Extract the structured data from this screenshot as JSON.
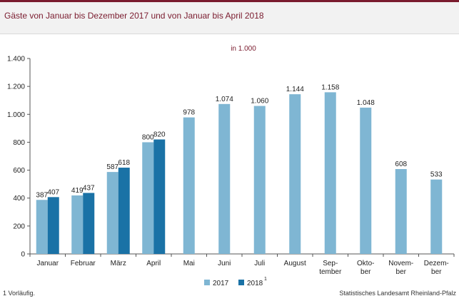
{
  "header": {
    "title": "Gäste von Januar bis Dezember 2017 und von Januar bis April 2018"
  },
  "footer": {
    "footnote": "1 Vorläufig.",
    "source": "Statistisches Landesamt Rheinland-Pfalz"
  },
  "colors": {
    "s2017": "#7fb6d3",
    "s2018": "#1a72a6",
    "brand": "#7a1b2e"
  },
  "chart_data": {
    "type": "bar",
    "unit_label": "in 1.000",
    "categories": [
      "Januar",
      "Februar",
      "März",
      "April",
      "Mai",
      "Juni",
      "Juli",
      "August",
      "Sep-|tember",
      "Okto-|ber",
      "Novem-|ber",
      "Dezem-|ber"
    ],
    "series": [
      {
        "name": "2017",
        "values": [
          387,
          419,
          587,
          800,
          978,
          1074,
          1060,
          1144,
          1158,
          1048,
          608,
          533
        ],
        "labels": [
          "387",
          "419",
          "587",
          "800",
          "978",
          "1.074",
          "1.060",
          "1.144",
          "1.158",
          "1.048",
          "608",
          "533"
        ]
      },
      {
        "name": "2018",
        "superscript": "1",
        "values": [
          407,
          437,
          618,
          820,
          null,
          null,
          null,
          null,
          null,
          null,
          null,
          null
        ],
        "labels": [
          "407",
          "437",
          "618",
          "820",
          "",
          "",
          "",
          "",
          "",
          "",
          "",
          ""
        ]
      }
    ],
    "ylim": [
      0,
      1400
    ],
    "yticks": [
      0,
      200,
      400,
      600,
      800,
      1000,
      1200,
      1400
    ],
    "ytick_labels": [
      "0",
      "200",
      "400",
      "600",
      "800",
      "1.000",
      "1.200",
      "1.400"
    ],
    "grid": false,
    "legend": "bottom-center"
  }
}
